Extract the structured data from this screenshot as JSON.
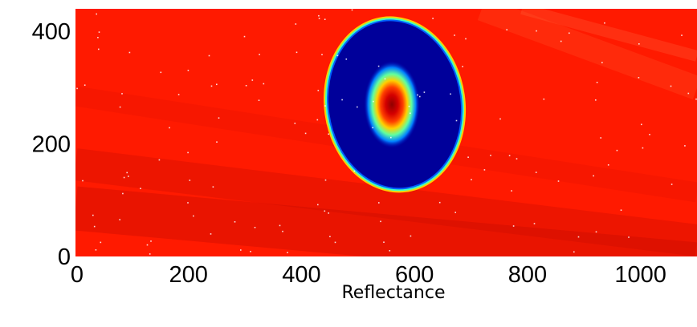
{
  "chart_data": {
    "type": "heatmap",
    "caption": "Reflectance",
    "xlim": [
      0,
      1100
    ],
    "ylim": [
      0,
      440
    ],
    "x_ticks": [
      "0",
      "200",
      "400",
      "600",
      "800",
      "1000"
    ],
    "y_ticks": [
      "0",
      "200",
      "400"
    ],
    "colormap": [
      "#00008f",
      "#0000ff",
      "#00ffff",
      "#ffff00",
      "#ff0000",
      "#8f0000"
    ],
    "background_color": "#ff1a00",
    "features": {
      "ring_center": [
        565,
        270
      ],
      "ring_radius": [
        118,
        150
      ],
      "ring_tilt_deg": -8,
      "core_center": [
        560,
        270
      ],
      "core_radius": [
        32,
        50
      ]
    }
  }
}
